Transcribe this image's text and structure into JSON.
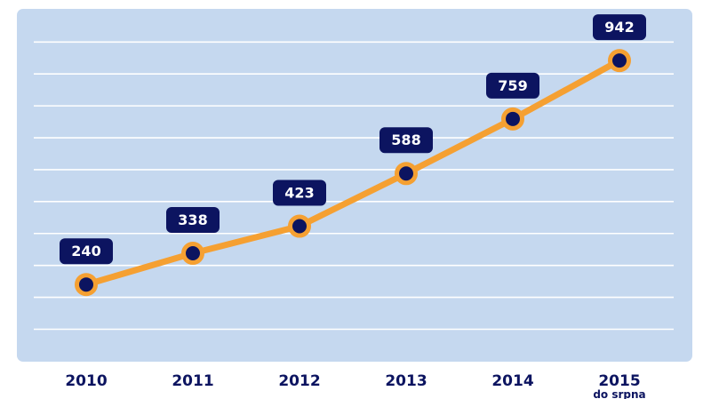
{
  "chart_data": {
    "type": "line",
    "title": "",
    "xlabel": "",
    "ylabel": "",
    "categories": [
      "2010",
      "2011",
      "2012",
      "2013",
      "2014",
      "2015"
    ],
    "category_sublabels": [
      "",
      "",
      "",
      "",
      "",
      "do srpna"
    ],
    "series": [
      {
        "name": "",
        "values": [
          240,
          338,
          423,
          588,
          759,
          942
        ]
      }
    ],
    "ylim": [
      0,
      1000
    ],
    "grid": true,
    "data_labels": true,
    "legend": "none"
  },
  "colors": {
    "plot_background": "#c5d8ef",
    "gridline": "#ffffff",
    "line": "#f5a032",
    "marker_fill": "#0c1460",
    "label_box": "#0c1460",
    "label_text": "#ffffff",
    "axis_text": "#0c1460"
  }
}
